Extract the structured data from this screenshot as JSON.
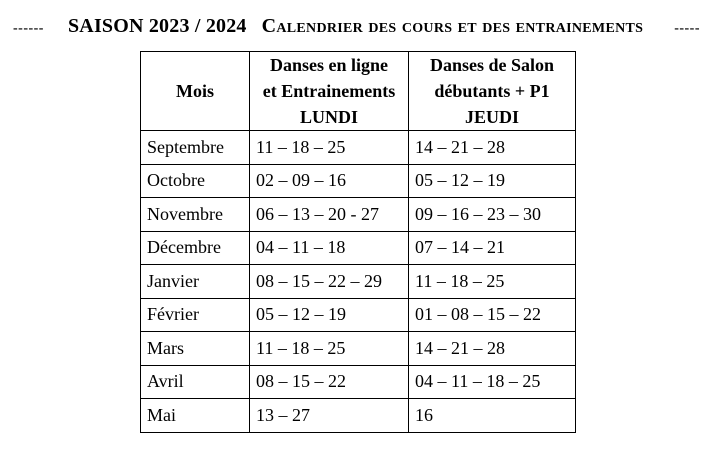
{
  "title": {
    "dashes_left": "------",
    "season": "SAISON 2023 / 2024",
    "calendar": "Calendrier des cours et des entrainements",
    "dashes_right": "-----"
  },
  "table": {
    "headers": {
      "mois": "Mois",
      "lundi": [
        "Danses en ligne",
        "et Entrainements",
        "LUNDI"
      ],
      "jeudi": [
        "Danses de Salon",
        "débutants + P1",
        "JEUDI"
      ]
    },
    "rows": [
      {
        "mois": "Septembre",
        "lundi": "11 – 18 – 25",
        "jeudi": "14 – 21 – 28"
      },
      {
        "mois": "Octobre",
        "lundi": "02 – 09 – 16",
        "jeudi": "05 – 12 – 19"
      },
      {
        "mois": "Novembre",
        "lundi": "06 – 13 – 20 - 27",
        "jeudi": "09 – 16 – 23 – 30"
      },
      {
        "mois": "Décembre",
        "lundi": "04 – 11 – 18",
        "jeudi": "07 – 14 – 21"
      },
      {
        "mois": "Janvier",
        "lundi": "08 – 15 – 22 – 29",
        "jeudi": "11 – 18 – 25"
      },
      {
        "mois": "Février",
        "lundi": "05 – 12 – 19",
        "jeudi": "01 – 08 – 15 – 22"
      },
      {
        "mois": "Mars",
        "lundi": "11 – 18 – 25",
        "jeudi": "14 – 21 – 28"
      },
      {
        "mois": "Avril",
        "lundi": "08 – 15 – 22",
        "jeudi": "04 – 11 – 18 – 25"
      },
      {
        "mois": "Mai",
        "lundi": "13 – 27",
        "jeudi": "16"
      }
    ]
  },
  "colors": {
    "text": "#000000",
    "background": "#ffffff",
    "border": "#000000"
  }
}
